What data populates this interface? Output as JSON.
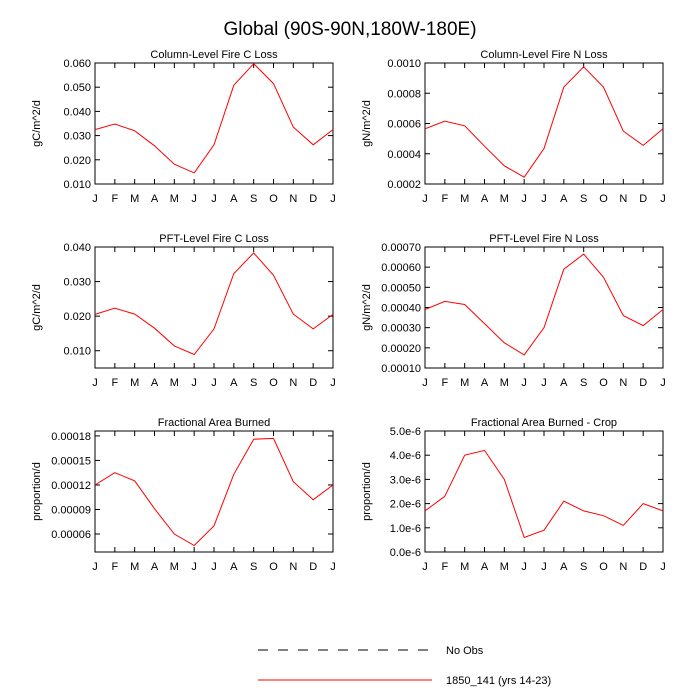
{
  "figure": {
    "title": "Global (90S-90N,180W-180E)",
    "legend": [
      {
        "label": "No Obs",
        "style": "dashed",
        "color": "#000000"
      },
      {
        "label": "1850_141 (yrs 14-23)",
        "style": "solid",
        "color": "#ff0000"
      }
    ]
  },
  "chart_data": [
    {
      "type": "line",
      "title": "Column-Level Fire C Loss",
      "ylabel": "gC/m^2/d",
      "xlabel": "",
      "x": [
        "J",
        "F",
        "M",
        "A",
        "M",
        "J",
        "J",
        "A",
        "S",
        "O",
        "N",
        "D",
        "J"
      ],
      "ylim": [
        0.01,
        0.06
      ],
      "yticks": [
        "0.010",
        "0.020",
        "0.030",
        "0.040",
        "0.050",
        "0.060"
      ],
      "ytick_values": [
        0.01,
        0.02,
        0.03,
        0.04,
        0.05,
        0.06
      ],
      "series": [
        {
          "name": "1850_141 (yrs 14-23)",
          "color": "#ff0000",
          "values": [
            0.0325,
            0.0348,
            0.032,
            0.0258,
            0.0182,
            0.0146,
            0.0262,
            0.0508,
            0.0597,
            0.0515,
            0.0335,
            0.0262,
            0.0325
          ]
        }
      ]
    },
    {
      "type": "line",
      "title": "Column-Level Fire N Loss",
      "ylabel": "gN/m^2/d",
      "xlabel": "",
      "x": [
        "J",
        "F",
        "M",
        "A",
        "M",
        "J",
        "J",
        "A",
        "S",
        "O",
        "N",
        "D",
        "J"
      ],
      "ylim": [
        0.0002,
        0.001
      ],
      "yticks": [
        "0.0002",
        "0.0004",
        "0.0006",
        "0.0008",
        "0.0010"
      ],
      "ytick_values": [
        0.0002,
        0.0004,
        0.0006,
        0.0008,
        0.001
      ],
      "series": [
        {
          "name": "1850_141 (yrs 14-23)",
          "color": "#ff0000",
          "values": [
            0.000565,
            0.000615,
            0.000585,
            0.00045,
            0.00032,
            0.000245,
            0.000435,
            0.00084,
            0.000975,
            0.00084,
            0.00055,
            0.000455,
            0.000565
          ]
        }
      ]
    },
    {
      "type": "line",
      "title": "PFT-Level Fire C Loss",
      "ylabel": "gC/m^2/d",
      "xlabel": "",
      "x": [
        "J",
        "F",
        "M",
        "A",
        "M",
        "J",
        "J",
        "A",
        "S",
        "O",
        "N",
        "D",
        "J"
      ],
      "ylim": [
        0.005,
        0.04
      ],
      "yticks": [
        "0.010",
        "0.020",
        "0.030",
        "0.040"
      ],
      "ytick_values": [
        0.01,
        0.02,
        0.03,
        0.04
      ],
      "series": [
        {
          "name": "1850_141 (yrs 14-23)",
          "color": "#ff0000",
          "values": [
            0.0205,
            0.0223,
            0.0206,
            0.0165,
            0.0114,
            0.0089,
            0.0163,
            0.0323,
            0.0383,
            0.0318,
            0.0206,
            0.0163,
            0.0205
          ]
        }
      ]
    },
    {
      "type": "line",
      "title": "PFT-Level Fire N Loss",
      "ylabel": "gN/m^2/d",
      "xlabel": "",
      "x": [
        "J",
        "F",
        "M",
        "A",
        "M",
        "J",
        "J",
        "A",
        "S",
        "O",
        "N",
        "D",
        "J"
      ],
      "ylim": [
        0.0001,
        0.0007
      ],
      "yticks": [
        "0.00010",
        "0.00020",
        "0.00030",
        "0.00040",
        "0.00050",
        "0.00060",
        "0.00070"
      ],
      "ytick_values": [
        0.0001,
        0.0002,
        0.0003,
        0.0004,
        0.0005,
        0.0006,
        0.0007
      ],
      "series": [
        {
          "name": "1850_141 (yrs 14-23)",
          "color": "#ff0000",
          "values": [
            0.00039,
            0.00043,
            0.000415,
            0.00032,
            0.000225,
            0.000165,
            0.0003,
            0.00059,
            0.000665,
            0.00055,
            0.00036,
            0.00031,
            0.00039
          ]
        }
      ]
    },
    {
      "type": "line",
      "title": "Fractional Area Burned",
      "ylabel": "proportion/d",
      "xlabel": "",
      "x": [
        "J",
        "F",
        "M",
        "A",
        "M",
        "J",
        "J",
        "A",
        "S",
        "O",
        "N",
        "D",
        "J"
      ],
      "ylim": [
        3.8e-05,
        0.000186
      ],
      "yticks": [
        "0.00006",
        "0.00009",
        "0.00012",
        "0.00015",
        "0.00018"
      ],
      "ytick_values": [
        6e-05,
        9e-05,
        0.00012,
        0.00015,
        0.00018
      ],
      "series": [
        {
          "name": "1850_141 (yrs 14-23)",
          "color": "#ff0000",
          "values": [
            0.00012,
            0.000135,
            0.000125,
            9.1e-05,
            6e-05,
            4.6e-05,
            7e-05,
            0.000133,
            0.000176,
            0.000177,
            0.000124,
            0.000102,
            0.00012
          ]
        }
      ]
    },
    {
      "type": "line",
      "title": "Fractional Area Burned - Crop",
      "ylabel": "proportion/d",
      "xlabel": "",
      "x": [
        "J",
        "F",
        "M",
        "A",
        "M",
        "J",
        "J",
        "A",
        "S",
        "O",
        "N",
        "D",
        "J"
      ],
      "ylim": [
        0.0,
        5e-06
      ],
      "yticks": [
        "0.0e-6",
        "1.0e-6",
        "2.0e-6",
        "3.0e-6",
        "4.0e-6",
        "5.0e-6"
      ],
      "ytick_values": [
        0.0,
        1e-06,
        2e-06,
        3e-06,
        4e-06,
        5e-06
      ],
      "series": [
        {
          "name": "1850_141 (yrs 14-23)",
          "color": "#ff0000",
          "values": [
            1.7e-06,
            2.3e-06,
            4e-06,
            4.2e-06,
            3e-06,
            6e-07,
            9e-07,
            2.1e-06,
            1.7e-06,
            1.5e-06,
            1.1e-06,
            2e-06,
            1.7e-06
          ]
        }
      ]
    }
  ]
}
